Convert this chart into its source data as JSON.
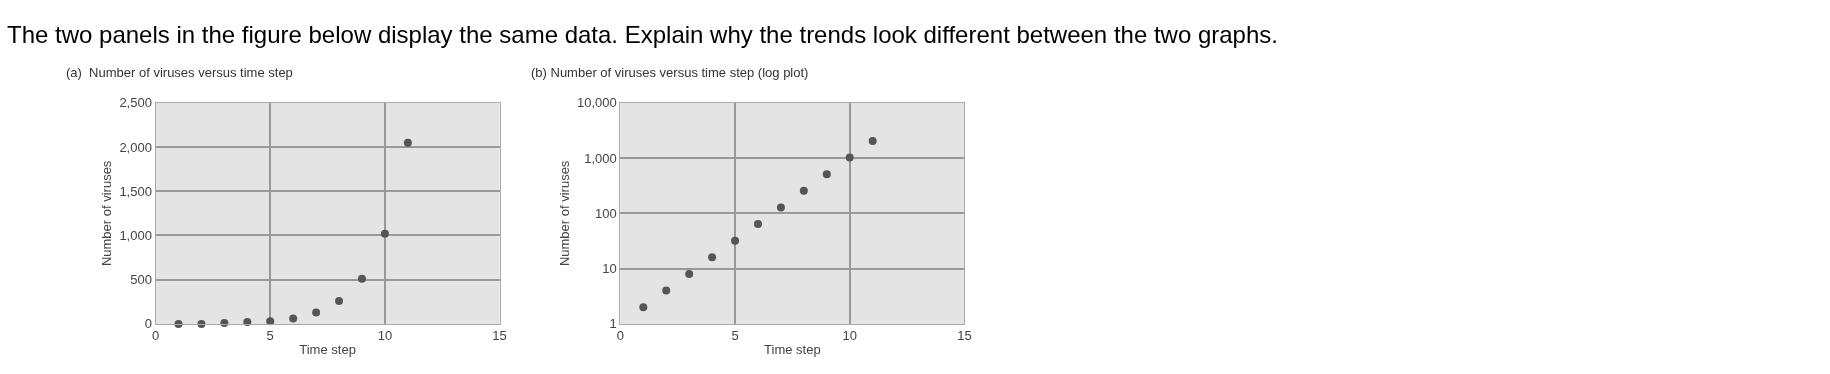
{
  "chart_data": [
    {
      "type": "scatter",
      "title": "(a)  Number of viruses versus time step",
      "xlabel": "Time step",
      "ylabel": "Number of viruses",
      "annotations": [
        "The two panels in the figure below display the same data. Explain why the trends look different between the two graphs."
      ],
      "x": [
        1,
        2,
        3,
        4,
        5,
        6,
        7,
        8,
        9,
        10,
        11
      ],
      "series": [
        {
          "color": "#555555",
          "values": [
            0,
            0,
            10,
            20,
            30,
            60,
            130,
            260,
            510,
            1020,
            2050
          ]
        }
      ],
      "xlim": [
        0,
        15
      ],
      "xticks": [
        0,
        5,
        10,
        15
      ],
      "ylim": [
        0,
        2500
      ],
      "yticks": [
        0,
        {
          "value": 500,
          "label": "500"
        },
        {
          "value": 1000,
          "label": "1,000"
        },
        {
          "value": 1500,
          "label": "1,500"
        },
        {
          "value": 2000,
          "label": "2,000"
        },
        {
          "value": 2500,
          "label": "2,500"
        }
      ],
      "grid": true,
      "marker": "circle"
    },
    {
      "type": "scatter",
      "title": "(b) Number of viruses versus time step (log plot)",
      "xlabel": "Time step",
      "ylabel": "Number of viruses",
      "x": [
        1,
        2,
        3,
        4,
        5,
        6,
        7,
        8,
        9,
        10,
        11
      ],
      "series": [
        {
          "color": "#555555",
          "values": [
            2,
            4,
            8,
            16,
            32,
            64,
            128,
            256,
            512,
            1024,
            2048
          ]
        }
      ],
      "xlim": [
        0,
        15
      ],
      "xticks": [
        0,
        5,
        10,
        15
      ],
      "ylim": [
        1,
        10000
      ],
      "yticks": [
        1,
        10,
        100,
        {
          "value": 1000,
          "label": "1,000"
        },
        {
          "value": 10000,
          "label": "10,000"
        }
      ],
      "log": "y",
      "grid": true,
      "marker": "circle"
    }
  ]
}
